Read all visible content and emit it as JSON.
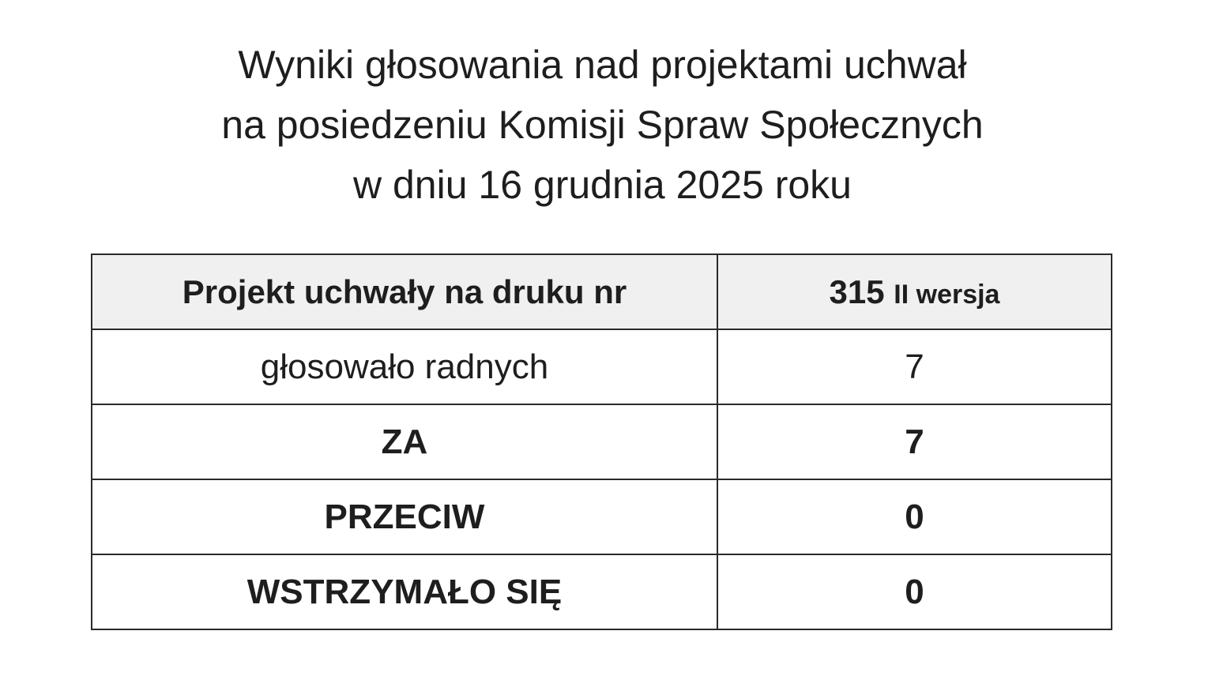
{
  "title": {
    "lines": [
      "Wyniki głosowania nad projektami uchwał",
      "na posiedzeniu Komisji Spraw Społecznych",
      "w dniu 16 grudnia 2025 roku"
    ]
  },
  "table": {
    "header": {
      "label": "Projekt uchwały na druku nr",
      "number": "315",
      "version": "II wersja"
    },
    "rows": [
      {
        "label": "głosowało radnych",
        "value": "7"
      },
      {
        "label": "ZA",
        "value": "7"
      },
      {
        "label": "PRZECIW",
        "value": "0"
      },
      {
        "label": "WSTRZYMAŁO SIĘ",
        "value": "0"
      }
    ]
  }
}
